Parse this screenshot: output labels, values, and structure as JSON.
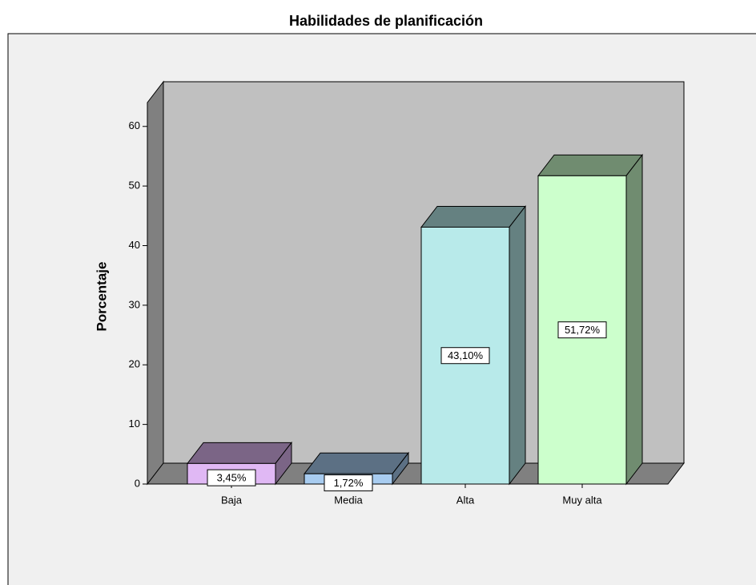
{
  "chart_data": {
    "type": "bar3d",
    "title": "Habilidades de planificación",
    "y_label": "Porcentaje",
    "categories": [
      "Baja",
      "Media",
      "Alta",
      "Muy alta"
    ],
    "values": [
      3.45,
      1.72,
      43.1,
      51.72
    ],
    "value_labels": [
      "3,45%",
      "1,72%",
      "43,10%",
      "51,72%"
    ],
    "colors": [
      "#e0b8f4",
      "#a8ccf0",
      "#b8eaea",
      "#ccffcc"
    ],
    "ylim": [
      0,
      64
    ],
    "yticks": [
      0,
      10,
      20,
      30,
      40,
      50,
      60
    ]
  }
}
